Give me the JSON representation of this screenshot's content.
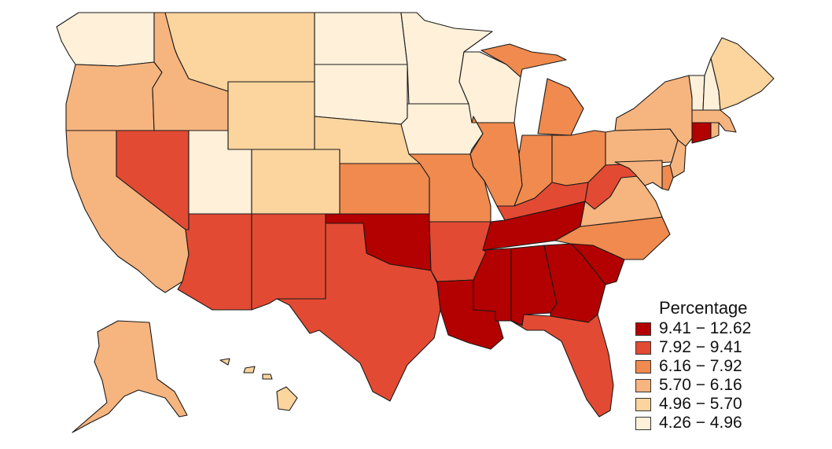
{
  "legend": {
    "title": "Percentage",
    "classes": [
      {
        "label": "9.41 − 12.62",
        "color": "#b30000"
      },
      {
        "label": "7.92 − 9.41",
        "color": "#e34a33"
      },
      {
        "label": "6.16 − 7.92",
        "color": "#f08a4e"
      },
      {
        "label": "5.70 − 6.16",
        "color": "#f6b47f"
      },
      {
        "label": "4.96 − 5.70",
        "color": "#fbd49e"
      },
      {
        "label": "4.26 − 4.96",
        "color": "#fef0d9"
      }
    ]
  },
  "states": [
    {
      "name": "Washington",
      "class": 5
    },
    {
      "name": "Oregon",
      "class": 3
    },
    {
      "name": "California",
      "class": 3
    },
    {
      "name": "Idaho",
      "class": 3
    },
    {
      "name": "Nevada",
      "class": 1
    },
    {
      "name": "Montana",
      "class": 4
    },
    {
      "name": "Wyoming",
      "class": 4
    },
    {
      "name": "Utah",
      "class": 5
    },
    {
      "name": "Arizona",
      "class": 1
    },
    {
      "name": "Colorado",
      "class": 4
    },
    {
      "name": "New Mexico",
      "class": 1
    },
    {
      "name": "North Dakota",
      "class": 5
    },
    {
      "name": "South Dakota",
      "class": 5
    },
    {
      "name": "Nebraska",
      "class": 4
    },
    {
      "name": "Kansas",
      "class": 2
    },
    {
      "name": "Oklahoma",
      "class": 0
    },
    {
      "name": "Texas",
      "class": 1
    },
    {
      "name": "Minnesota",
      "class": 5
    },
    {
      "name": "Iowa",
      "class": 5
    },
    {
      "name": "Missouri",
      "class": 2
    },
    {
      "name": "Arkansas",
      "class": 1
    },
    {
      "name": "Louisiana",
      "class": 0
    },
    {
      "name": "Wisconsin",
      "class": 5
    },
    {
      "name": "Illinois",
      "class": 2
    },
    {
      "name": "Michigan",
      "class": 2
    },
    {
      "name": "Indiana",
      "class": 2
    },
    {
      "name": "Ohio",
      "class": 2
    },
    {
      "name": "Kentucky",
      "class": 1
    },
    {
      "name": "Tennessee",
      "class": 0
    },
    {
      "name": "Mississippi",
      "class": 0
    },
    {
      "name": "Alabama",
      "class": 0
    },
    {
      "name": "Georgia",
      "class": 0
    },
    {
      "name": "Florida",
      "class": 1
    },
    {
      "name": "South Carolina",
      "class": 0
    },
    {
      "name": "North Carolina",
      "class": 2
    },
    {
      "name": "Virginia",
      "class": 3
    },
    {
      "name": "West Virginia",
      "class": 1
    },
    {
      "name": "Pennsylvania",
      "class": 3
    },
    {
      "name": "New York",
      "class": 3
    },
    {
      "name": "New Jersey",
      "class": 3
    },
    {
      "name": "Delaware",
      "class": 2
    },
    {
      "name": "Maryland",
      "class": 3
    },
    {
      "name": "Connecticut",
      "class": 0
    },
    {
      "name": "Rhode Island",
      "class": 3
    },
    {
      "name": "Massachusetts",
      "class": 3
    },
    {
      "name": "Vermont",
      "class": 5
    },
    {
      "name": "New Hampshire",
      "class": 5
    },
    {
      "name": "Maine",
      "class": 4
    },
    {
      "name": "Alaska",
      "class": 3
    },
    {
      "name": "Hawaii",
      "class": 4
    }
  ]
}
